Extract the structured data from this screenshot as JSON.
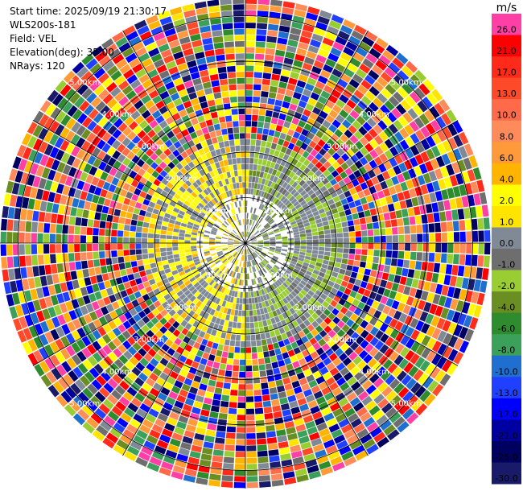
{
  "header": {
    "start_time": "Start time: 2025/09/19 21:30:17",
    "instrument": "WLS200s-181",
    "field": "Field: VEL",
    "elevation": "Elevation(deg): 35.00",
    "nrays": "NRays: 120"
  },
  "chart_data": {
    "type": "heatmap",
    "projection": "polar-ppi",
    "range_rings_km": [
      1,
      2,
      3,
      4,
      5
    ],
    "ring_labels": [
      "1.00km",
      "2.00km",
      "3.00km",
      "4.00km",
      "5.00km"
    ],
    "max_range_km": 5.4,
    "gate_spacing_km": 0.135,
    "rays": 120,
    "azimuth_lines_deg": [
      0,
      30,
      60,
      90,
      120,
      150,
      180,
      210,
      240,
      270,
      300,
      330
    ],
    "colorbar": {
      "unit": "m/s",
      "ticks": [
        "26.0",
        "21.0",
        "17.0",
        "13.0",
        "10.0",
        "8.0",
        "6.0",
        "4.0",
        "2.0",
        "1.0",
        "0.0",
        "-1.0",
        "-2.0",
        "-4.0",
        "-6.0",
        "-8.0",
        "-10.0",
        "-13.0",
        "-17.0",
        "-21.0",
        "-26.0",
        "-30.0"
      ],
      "colors": [
        "#ff3fa6",
        "#ff0000",
        "#ff2a1a",
        "#ff4a2a",
        "#ff6a4a",
        "#ff8a5a",
        "#ff9a3a",
        "#ffb400",
        "#ffff00",
        "#ffe400",
        "#808a96",
        "#6e6e6e",
        "#9acd32",
        "#6b8e23",
        "#2e8b2e",
        "#3aa05a",
        "#1e6fd0",
        "#2040ff",
        "#0000ff",
        "#0000a0",
        "#000060",
        "#1a1a6a"
      ]
    }
  }
}
